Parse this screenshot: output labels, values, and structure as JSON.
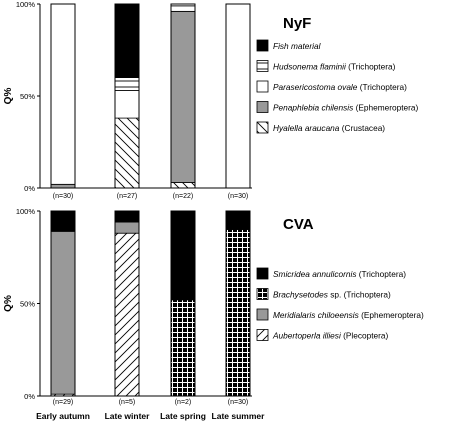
{
  "chart_data": [
    {
      "type": "bar",
      "stacked": true,
      "site_label": "NyF",
      "ylabel": "Q%",
      "ylim": [
        0,
        100
      ],
      "yticks": [
        "0%",
        "50%",
        "100%"
      ],
      "categories": [
        "Early autumn",
        "Late winter",
        "Late spring",
        "Late summer"
      ],
      "n_labels": [
        "(n=30)",
        "(n=27)",
        "(n=22)",
        "(n=30)"
      ],
      "series": [
        {
          "name": "Hyalella araucana",
          "note": "(Crustacea)",
          "pattern": "diag",
          "values": [
            0,
            38,
            3,
            0
          ]
        },
        {
          "name": "Penaphlebia chilensis",
          "note": "(Ephemeroptera)",
          "pattern": "gray",
          "values": [
            2,
            0,
            93,
            0
          ]
        },
        {
          "name": "Parasericostoma ovale",
          "note": "(Trichoptera)",
          "pattern": "white",
          "values": [
            98,
            15,
            3,
            100
          ]
        },
        {
          "name": "Hudsonema flaminii",
          "note": "(Trichoptera)",
          "pattern": "hlines",
          "values": [
            0,
            7,
            1,
            0
          ]
        },
        {
          "name": "Fish material",
          "note": "",
          "pattern": "black",
          "values": [
            0,
            40,
            0,
            0
          ]
        }
      ],
      "legend_order": [
        4,
        3,
        2,
        1,
        0
      ]
    },
    {
      "type": "bar",
      "stacked": true,
      "site_label": "CVA",
      "ylabel": "Q%",
      "ylim": [
        0,
        100
      ],
      "yticks": [
        "0%",
        "50%",
        "100%"
      ],
      "categories": [
        "Early autumn",
        "Late winter",
        "Late spring",
        "Late summer"
      ],
      "n_labels": [
        "(n=29)",
        "(n=5)",
        "(n=2)",
        "(n=30)"
      ],
      "series": [
        {
          "name": "Aubertoperla illiesi",
          "note": "(Plecoptera)",
          "pattern": "diag-rev",
          "values": [
            1,
            88,
            0,
            0
          ]
        },
        {
          "name": "Meridialaris chiloeensis",
          "note": "(Ephemeroptera)",
          "pattern": "gray",
          "values": [
            88,
            6,
            0,
            0
          ]
        },
        {
          "name": "Brachysetodes",
          "note": "sp. (Trichoptera)",
          "pattern": "grid",
          "values": [
            0,
            0,
            52,
            90
          ]
        },
        {
          "name": "Smicridea annulicornis",
          "note": "(Trichoptera)",
          "pattern": "black",
          "values": [
            11,
            6,
            48,
            10
          ]
        }
      ],
      "legend_order": [
        3,
        2,
        1,
        0
      ]
    }
  ],
  "colors": {
    "gray": "#999999",
    "black": "#000000",
    "white": "#ffffff"
  }
}
